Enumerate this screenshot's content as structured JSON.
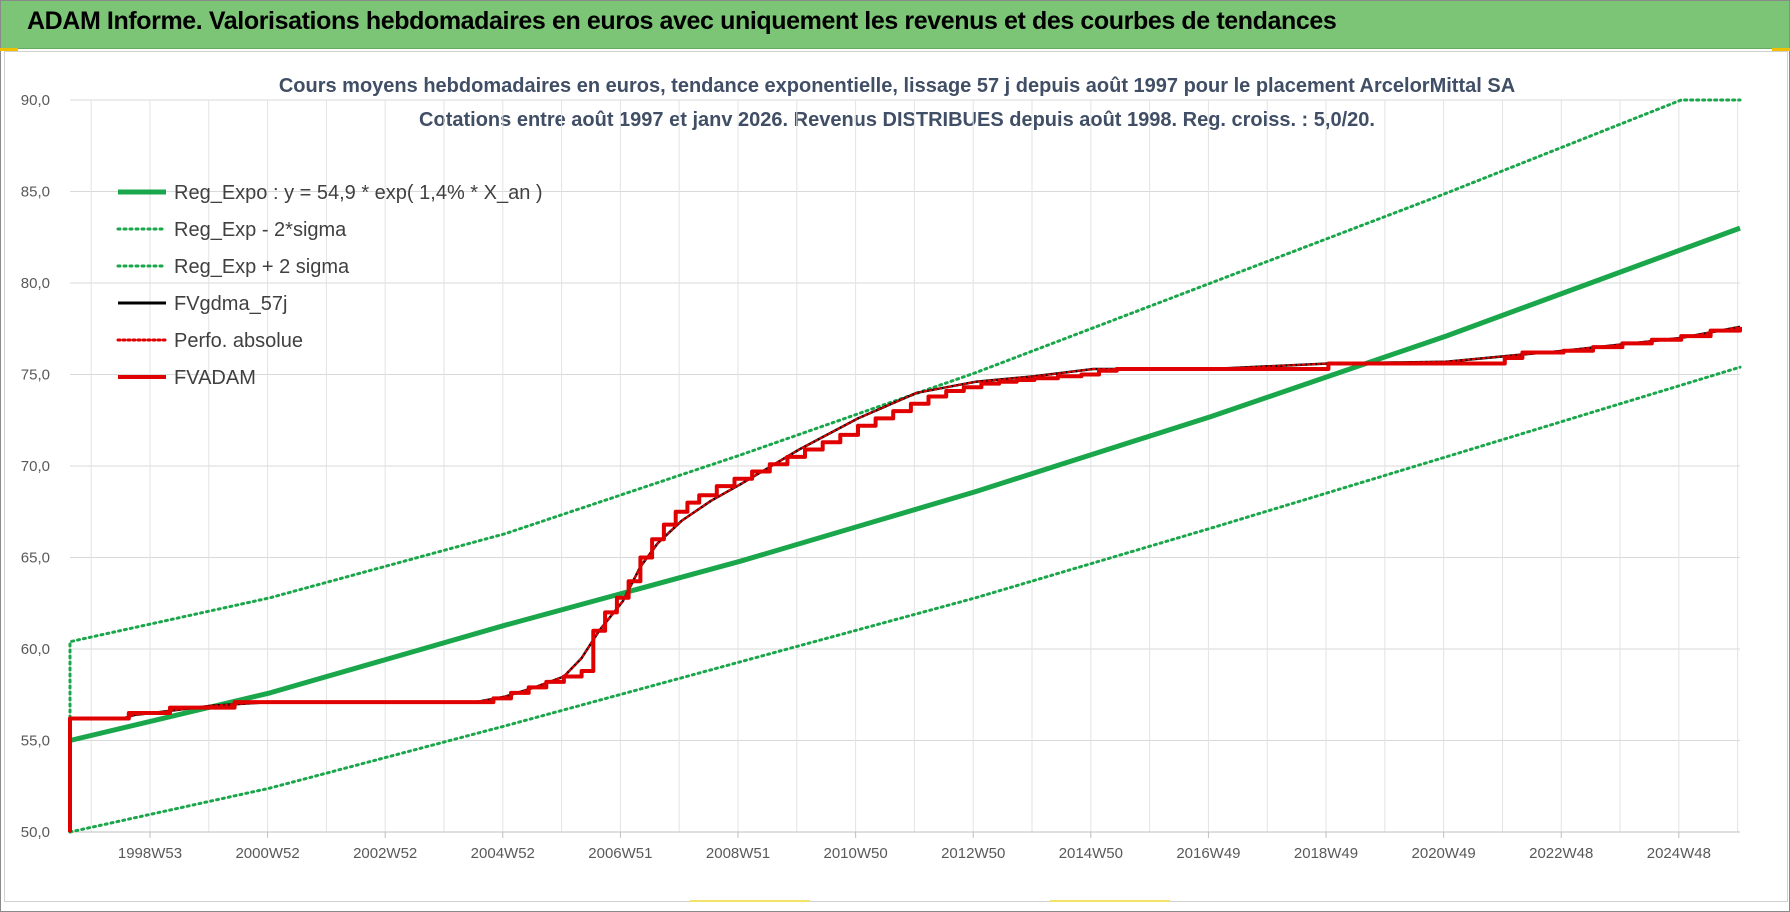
{
  "header": {
    "title": "ADAM Informe. Valorisations hebdomadaires en euros avec uniquement les revenus et des courbes de tendances"
  },
  "chart_data": {
    "type": "line",
    "title": "Cours moyens hebdomadaires en euros, tendance exponentielle, lissage 57 j depuis août 1997 pour le placement ArcelorMittal SA",
    "subtitle": "Cotations entre août 1997 et janv 2026.  Revenus DISTRIBUES depuis août 1998. Reg.  croiss. : 5,0/20.",
    "ylim": [
      50,
      90
    ],
    "xlim": [
      1997.6,
      2026.0
    ],
    "grid": true,
    "legend_position": "top-left",
    "y_ticks": [
      "50,0",
      "55,0",
      "60,0",
      "65,0",
      "70,0",
      "75,0",
      "80,0",
      "85,0",
      "90,0"
    ],
    "x_ticks": [
      {
        "x": 1998.96,
        "label": "1998W53"
      },
      {
        "x": 2000.96,
        "label": "2000W52"
      },
      {
        "x": 2002.96,
        "label": "2002W52"
      },
      {
        "x": 2004.96,
        "label": "2004W52"
      },
      {
        "x": 2006.96,
        "label": "2006W51"
      },
      {
        "x": 2008.96,
        "label": "2008W51"
      },
      {
        "x": 2010.96,
        "label": "2010W50"
      },
      {
        "x": 2012.96,
        "label": "2012W50"
      },
      {
        "x": 2014.96,
        "label": "2014W50"
      },
      {
        "x": 2016.96,
        "label": "2016W49"
      },
      {
        "x": 2018.96,
        "label": "2018W49"
      },
      {
        "x": 2020.96,
        "label": "2020W49"
      },
      {
        "x": 2022.96,
        "label": "2022W48"
      },
      {
        "x": 2024.96,
        "label": "2024W48"
      }
    ],
    "series": [
      {
        "name": "Reg_Expo : y = 54,9 * exp( 1,4% *  X_an )",
        "color": "#1aa64a",
        "style": "solid-thick",
        "x": [
          1997.6,
          2001.0,
          2005.0,
          2009.0,
          2013.0,
          2017.0,
          2021.0,
          2026.0
        ],
        "y": [
          55.0,
          57.6,
          61.3,
          64.8,
          68.6,
          72.7,
          77.1,
          83.0
        ]
      },
      {
        "name": "Reg_Exp - 2*sigma",
        "color": "#1aa64a",
        "style": "dotted",
        "x": [
          1997.6,
          2001.0,
          2005.0,
          2009.0,
          2013.0,
          2017.0,
          2021.0,
          2026.0
        ],
        "y": [
          50.0,
          52.4,
          55.8,
          59.3,
          62.8,
          66.6,
          70.5,
          75.4
        ]
      },
      {
        "name": "Reg_Exp + 2 sigma",
        "color": "#1aa64a",
        "style": "dotted",
        "x": [
          1997.6,
          1997.6,
          2001.0,
          2005.0,
          2009.0,
          2013.0,
          2017.0,
          2021.0,
          2025.0,
          2026.0
        ],
        "y": [
          50.0,
          60.4,
          62.8,
          66.3,
          70.6,
          75.1,
          80.0,
          84.9,
          90.0,
          90.0
        ]
      },
      {
        "name": "FVgdma_57j",
        "color": "#000000",
        "style": "solid-thin",
        "x": [
          1997.6,
          1997.6,
          1998.5,
          1998.7,
          1999.0,
          2000.0,
          2001.0,
          2004.5,
          2005.0,
          2005.5,
          2006.0,
          2006.3,
          2006.6,
          2007.0,
          2007.3,
          2007.6,
          2008.0,
          2008.5,
          2009.0,
          2010.0,
          2011.0,
          2012.0,
          2013.0,
          2014.0,
          2015.0,
          2017.0,
          2019.0,
          2021.0,
          2023.0,
          2025.0,
          2026.0
        ],
        "y": [
          50.0,
          56.2,
          56.2,
          56.4,
          56.5,
          56.9,
          57.1,
          57.1,
          57.4,
          57.9,
          58.5,
          59.5,
          61.0,
          62.6,
          64.5,
          65.8,
          67.0,
          68.1,
          69.0,
          70.9,
          72.6,
          74.0,
          74.6,
          74.9,
          75.3,
          75.3,
          75.6,
          75.7,
          76.3,
          77.0,
          77.6
        ]
      },
      {
        "name": "Perfo. absolue",
        "color": "#e00000",
        "style": "dotted-thin",
        "x": [
          1997.6,
          1997.6,
          1998.5,
          1998.7,
          1999.0,
          2000.0,
          2001.0,
          2004.5,
          2005.0,
          2005.5,
          2006.0,
          2006.3,
          2006.6,
          2007.0,
          2007.3,
          2007.6,
          2008.0,
          2008.5,
          2009.0,
          2010.0,
          2011.0,
          2012.0,
          2013.0,
          2014.0,
          2015.0,
          2017.0,
          2019.0,
          2021.0,
          2023.0,
          2025.0,
          2026.0
        ],
        "y": [
          50.0,
          56.2,
          56.2,
          56.4,
          56.5,
          56.9,
          57.1,
          57.1,
          57.4,
          57.9,
          58.5,
          59.5,
          61.0,
          62.6,
          64.5,
          65.8,
          67.0,
          68.1,
          69.0,
          70.9,
          72.6,
          74.0,
          74.6,
          74.9,
          75.3,
          75.3,
          75.6,
          75.7,
          76.3,
          77.0,
          77.6
        ]
      },
      {
        "name": "FVADAM",
        "color": "#e00000",
        "style": "step-thick",
        "x": [
          1997.6,
          1997.6,
          1998.6,
          1998.6,
          1999.3,
          1999.3,
          2000.4,
          2000.4,
          2004.5,
          2004.8,
          2005.1,
          2005.4,
          2005.7,
          2006.0,
          2006.3,
          2006.5,
          2006.7,
          2006.9,
          2007.1,
          2007.3,
          2007.5,
          2007.7,
          2007.9,
          2008.1,
          2008.3,
          2008.6,
          2008.9,
          2009.2,
          2009.5,
          2009.8,
          2010.1,
          2010.4,
          2010.7,
          2011.0,
          2011.3,
          2011.6,
          2011.9,
          2012.2,
          2012.5,
          2012.8,
          2013.1,
          2013.4,
          2013.7,
          2014.0,
          2014.4,
          2014.8,
          2015.1,
          2015.4,
          2019.0,
          2020.0,
          2022.0,
          2022.3,
          2023.0,
          2023.5,
          2024.0,
          2024.5,
          2025.0,
          2025.5,
          2026.0
        ],
        "y": [
          50.0,
          56.2,
          56.2,
          56.5,
          56.5,
          56.8,
          56.8,
          57.1,
          57.1,
          57.3,
          57.6,
          57.9,
          58.2,
          58.5,
          58.8,
          61.0,
          62.0,
          62.8,
          63.7,
          65.0,
          66.0,
          66.8,
          67.5,
          68.0,
          68.4,
          68.9,
          69.3,
          69.7,
          70.1,
          70.5,
          70.9,
          71.3,
          71.7,
          72.2,
          72.6,
          73.0,
          73.4,
          73.8,
          74.1,
          74.3,
          74.5,
          74.6,
          74.7,
          74.8,
          74.9,
          75.0,
          75.2,
          75.3,
          75.6,
          75.6,
          75.9,
          76.2,
          76.3,
          76.5,
          76.7,
          76.9,
          77.1,
          77.4,
          77.6
        ]
      }
    ]
  }
}
